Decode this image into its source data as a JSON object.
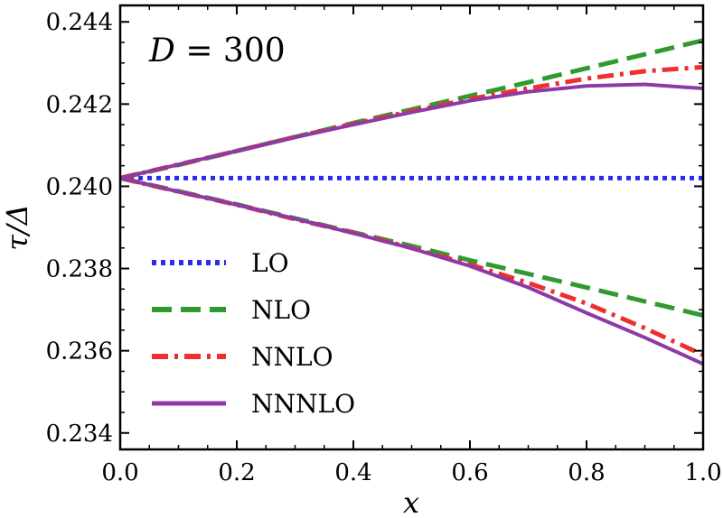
{
  "chart_data": {
    "type": "line",
    "title": "",
    "xlabel": "x",
    "ylabel": "τ/Δ",
    "xlim": [
      0.0,
      1.0
    ],
    "ylim": [
      0.2336,
      0.2444
    ],
    "grid": false,
    "legend_position": "lower-left",
    "annotation": "D = 300",
    "x_ticks": [
      0.0,
      0.2,
      0.4,
      0.6,
      0.8,
      1.0
    ],
    "x_tick_labels": [
      "0.0",
      "0.2",
      "0.4",
      "0.6",
      "0.8",
      "1.0"
    ],
    "y_ticks": [
      0.234,
      0.236,
      0.238,
      0.24,
      0.242,
      0.244
    ],
    "y_tick_labels": [
      "0.234",
      "0.236",
      "0.238",
      "0.240",
      "0.242",
      "0.244"
    ],
    "x": [
      0.0,
      0.1,
      0.2,
      0.3,
      0.4,
      0.5,
      0.6,
      0.7,
      0.8,
      0.9,
      1.0
    ],
    "series": [
      {
        "name": "LO",
        "color": "#2b2bef",
        "style": "dotted",
        "branches": [
          [
            0.2402,
            0.2402,
            0.2402,
            0.2402,
            0.2402,
            0.2402,
            0.2402,
            0.2402,
            0.2402,
            0.2402,
            0.2402
          ]
        ]
      },
      {
        "name": "NLO",
        "color": "#2f9a2f",
        "style": "dashed",
        "branches": [
          [
            0.2402,
            0.24052,
            0.24086,
            0.2412,
            0.24154,
            0.24187,
            0.2422,
            0.24253,
            0.24287,
            0.24321,
            0.24355
          ],
          [
            0.2402,
            0.23988,
            0.23956,
            0.23922,
            0.23888,
            0.23855,
            0.2382,
            0.23787,
            0.23754,
            0.2372,
            0.23686
          ]
        ]
      },
      {
        "name": "NNLO",
        "color": "#ef2f2f",
        "style": "dashdot",
        "branches": [
          [
            0.2402,
            0.24053,
            0.24086,
            0.2412,
            0.24152,
            0.24183,
            0.24212,
            0.24238,
            0.24262,
            0.2428,
            0.2429
          ],
          [
            0.2402,
            0.23987,
            0.23955,
            0.2392,
            0.23887,
            0.2385,
            0.2381,
            0.23765,
            0.23715,
            0.23655,
            0.2359
          ]
        ]
      },
      {
        "name": "NNNLO",
        "color": "#8e3aa6",
        "style": "solid",
        "branches": [
          [
            0.2402,
            0.24053,
            0.24086,
            0.24119,
            0.2415,
            0.2418,
            0.24208,
            0.2423,
            0.24244,
            0.24248,
            0.24238
          ],
          [
            0.2402,
            0.23987,
            0.23955,
            0.23921,
            0.23886,
            0.23849,
            0.23806,
            0.23754,
            0.23692,
            0.23632,
            0.23568
          ]
        ]
      }
    ]
  }
}
